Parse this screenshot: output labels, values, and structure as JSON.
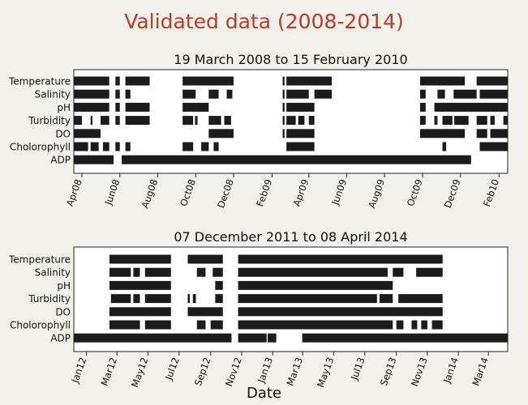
{
  "title": "Validated data (2008-2014)",
  "xlabel": "Date",
  "chart_data": [
    {
      "type": "timeline",
      "title": "19 March 2008 to 15 February 2010",
      "xlim": [
        "2008-03-19",
        "2010-02-15"
      ],
      "categories": [
        "Temperature",
        "Salinity",
        "pH",
        "Turbidity",
        "DO",
        "Cholorophyll",
        "ADP"
      ],
      "ticks": [
        {
          "date": "2008-04-01",
          "label": "Apr08"
        },
        {
          "date": "2008-06-01",
          "label": "Jun08"
        },
        {
          "date": "2008-08-01",
          "label": "Aug08"
        },
        {
          "date": "2008-10-01",
          "label": "Oct08"
        },
        {
          "date": "2008-12-01",
          "label": "Dec08"
        },
        {
          "date": "2009-02-01",
          "label": "Feb09"
        },
        {
          "date": "2009-04-01",
          "label": "Apr09"
        },
        {
          "date": "2009-06-01",
          "label": "Jun09"
        },
        {
          "date": "2009-08-01",
          "label": "Aug09"
        },
        {
          "date": "2009-10-01",
          "label": "Oct09"
        },
        {
          "date": "2009-12-01",
          "label": "Dec09"
        },
        {
          "date": "2010-02-01",
          "label": "Feb10"
        }
      ],
      "series": [
        {
          "name": "Temperature",
          "segments": [
            [
              "2008-03-19",
              "2008-05-15"
            ],
            [
              "2008-05-25",
              "2008-06-01"
            ],
            [
              "2008-06-10",
              "2008-07-19"
            ],
            [
              "2008-09-10",
              "2008-12-01"
            ],
            [
              "2009-02-18",
              "2009-02-21"
            ],
            [
              "2009-02-24",
              "2009-05-08"
            ],
            [
              "2009-09-27",
              "2009-12-08"
            ],
            [
              "2009-12-27",
              "2010-02-15"
            ]
          ]
        },
        {
          "name": "Salinity",
          "segments": [
            [
              "2008-03-19",
              "2008-05-15"
            ],
            [
              "2008-05-25",
              "2008-06-01"
            ],
            [
              "2008-06-10",
              "2008-06-18"
            ],
            [
              "2008-09-10",
              "2008-10-01"
            ],
            [
              "2008-10-22",
              "2008-11-07"
            ],
            [
              "2008-11-20",
              "2008-11-29"
            ],
            [
              "2009-02-18",
              "2009-02-21"
            ],
            [
              "2009-02-24",
              "2009-04-01"
            ],
            [
              "2009-04-10",
              "2009-05-08"
            ],
            [
              "2009-09-27",
              "2009-10-06"
            ],
            [
              "2009-10-25",
              "2009-11-06"
            ],
            [
              "2009-11-20",
              "2009-12-27"
            ],
            [
              "2010-01-01",
              "2010-02-15"
            ]
          ]
        },
        {
          "name": "pH",
          "segments": [
            [
              "2008-03-19",
              "2008-05-15"
            ],
            [
              "2008-05-25",
              "2008-06-01"
            ],
            [
              "2008-06-10",
              "2008-07-19"
            ],
            [
              "2008-09-10",
              "2008-10-22"
            ],
            [
              "2009-02-18",
              "2009-02-21"
            ],
            [
              "2009-02-24",
              "2009-04-10"
            ],
            [
              "2009-09-27",
              "2009-10-06"
            ],
            [
              "2009-10-20",
              "2010-02-15"
            ]
          ]
        },
        {
          "name": "Turbidity",
          "segments": [
            [
              "2008-03-19",
              "2008-04-01"
            ],
            [
              "2008-04-15",
              "2008-04-18"
            ],
            [
              "2008-05-01",
              "2008-05-15"
            ],
            [
              "2008-05-25",
              "2008-06-01"
            ],
            [
              "2008-06-10",
              "2008-07-19"
            ],
            [
              "2008-09-10",
              "2008-09-27"
            ],
            [
              "2008-09-30",
              "2008-10-04"
            ],
            [
              "2008-10-22",
              "2008-11-11"
            ],
            [
              "2008-11-16",
              "2008-11-27"
            ],
            [
              "2009-02-18",
              "2009-02-21"
            ],
            [
              "2009-02-24",
              "2009-03-11"
            ],
            [
              "2009-03-15",
              "2009-03-25"
            ],
            [
              "2009-04-01",
              "2009-04-10"
            ],
            [
              "2009-09-27",
              "2009-10-06"
            ],
            [
              "2009-10-20",
              "2009-10-25"
            ],
            [
              "2009-11-02",
              "2009-11-18"
            ],
            [
              "2009-11-21",
              "2009-12-14"
            ],
            [
              "2009-12-27",
              "2010-01-13"
            ],
            [
              "2010-01-18",
              "2010-01-25"
            ],
            [
              "2010-02-08",
              "2010-02-15"
            ]
          ]
        },
        {
          "name": "DO",
          "segments": [
            [
              "2008-03-19",
              "2008-05-01"
            ],
            [
              "2008-10-22",
              "2008-12-01"
            ],
            [
              "2009-02-18",
              "2009-02-21"
            ],
            [
              "2009-02-24",
              "2009-04-10"
            ],
            [
              "2009-09-27",
              "2009-12-08"
            ],
            [
              "2009-12-27",
              "2010-01-13"
            ],
            [
              "2010-01-18",
              "2010-02-15"
            ]
          ]
        },
        {
          "name": "Cholorophyll",
          "segments": [
            [
              "2008-03-19",
              "2008-04-11"
            ],
            [
              "2008-04-15",
              "2008-04-28"
            ],
            [
              "2008-05-05",
              "2008-05-15"
            ],
            [
              "2008-05-25",
              "2008-06-01"
            ],
            [
              "2008-06-10",
              "2008-06-18"
            ],
            [
              "2008-09-10",
              "2008-09-27"
            ],
            [
              "2008-10-10",
              "2008-10-22"
            ],
            [
              "2008-10-30",
              "2008-11-07"
            ],
            [
              "2009-02-24",
              "2009-04-10"
            ],
            [
              "2009-11-02",
              "2009-11-08"
            ],
            [
              "2010-01-01",
              "2010-02-15"
            ]
          ]
        },
        {
          "name": "ADP",
          "segments": [
            [
              "2008-03-19",
              "2008-05-22"
            ],
            [
              "2008-06-04",
              "2009-12-18"
            ]
          ]
        }
      ]
    },
    {
      "type": "timeline",
      "title": "07 December 2011 to 08 April 2014",
      "xlim": [
        "2011-12-07",
        "2014-04-08"
      ],
      "categories": [
        "Temperature",
        "Salinity",
        "pH",
        "Turbidity",
        "DO",
        "Cholorophyll",
        "ADP"
      ],
      "ticks": [
        {
          "date": "2012-01-01",
          "label": "Jan12"
        },
        {
          "date": "2012-03-01",
          "label": "Mar12"
        },
        {
          "date": "2012-05-01",
          "label": "May12"
        },
        {
          "date": "2012-07-01",
          "label": "Jul12"
        },
        {
          "date": "2012-09-01",
          "label": "Sep12"
        },
        {
          "date": "2012-11-01",
          "label": "Nov12"
        },
        {
          "date": "2013-01-01",
          "label": "Jan13"
        },
        {
          "date": "2013-03-01",
          "label": "Mar13"
        },
        {
          "date": "2013-05-01",
          "label": "May13"
        },
        {
          "date": "2013-07-01",
          "label": "Jul13"
        },
        {
          "date": "2013-09-01",
          "label": "Sep13"
        },
        {
          "date": "2013-11-01",
          "label": "Nov13"
        },
        {
          "date": "2014-01-01",
          "label": "Jan14"
        },
        {
          "date": "2014-03-01",
          "label": "Mar14"
        }
      ],
      "series": [
        {
          "name": "Temperature",
          "segments": [
            [
              "2012-02-15",
              "2012-06-15"
            ],
            [
              "2012-07-18",
              "2012-09-25"
            ],
            [
              "2012-10-25",
              "2013-12-01"
            ]
          ]
        },
        {
          "name": "Salinity",
          "segments": [
            [
              "2012-02-15",
              "2012-03-28"
            ],
            [
              "2012-04-02",
              "2012-04-15"
            ],
            [
              "2012-04-25",
              "2012-06-15"
            ],
            [
              "2012-08-05",
              "2012-08-22"
            ],
            [
              "2012-09-05",
              "2012-09-25"
            ],
            [
              "2012-10-25",
              "2013-08-15"
            ],
            [
              "2013-08-25",
              "2013-09-15"
            ],
            [
              "2013-10-10",
              "2013-12-01"
            ]
          ]
        },
        {
          "name": "pH",
          "segments": [
            [
              "2012-02-15",
              "2012-06-15"
            ],
            [
              "2012-09-10",
              "2012-09-25"
            ],
            [
              "2012-10-25",
              "2013-08-25"
            ]
          ]
        },
        {
          "name": "Turbidity",
          "segments": [
            [
              "2012-02-18",
              "2012-03-28"
            ],
            [
              "2012-04-02",
              "2012-04-15"
            ],
            [
              "2012-04-25",
              "2012-06-15"
            ],
            [
              "2012-07-18",
              "2012-07-22"
            ],
            [
              "2012-07-28",
              "2012-08-03"
            ],
            [
              "2012-09-10",
              "2012-09-25"
            ],
            [
              "2012-10-25",
              "2013-07-25"
            ],
            [
              "2013-07-30",
              "2013-08-25"
            ],
            [
              "2013-09-05",
              "2013-12-01"
            ]
          ]
        },
        {
          "name": "DO",
          "segments": [
            [
              "2012-02-15",
              "2012-06-15"
            ],
            [
              "2012-07-18",
              "2012-09-25"
            ],
            [
              "2012-10-25",
              "2013-12-01"
            ]
          ]
        },
        {
          "name": "Cholorophyll",
          "segments": [
            [
              "2012-02-15",
              "2012-04-15"
            ],
            [
              "2012-04-25",
              "2012-06-15"
            ],
            [
              "2012-08-05",
              "2012-08-22"
            ],
            [
              "2012-09-01",
              "2012-09-25"
            ],
            [
              "2012-10-25",
              "2013-08-25"
            ],
            [
              "2013-09-01",
              "2013-09-15"
            ],
            [
              "2013-10-01",
              "2013-10-12"
            ],
            [
              "2013-10-20",
              "2013-11-01"
            ],
            [
              "2013-11-10",
              "2013-12-01"
            ]
          ]
        },
        {
          "name": "ADP",
          "segments": [
            [
              "2011-12-07",
              "2012-10-12"
            ],
            [
              "2012-10-25",
              "2012-12-20"
            ],
            [
              "2012-12-22",
              "2013-01-08"
            ],
            [
              "2013-02-28",
              "2014-04-08"
            ]
          ]
        }
      ]
    }
  ]
}
